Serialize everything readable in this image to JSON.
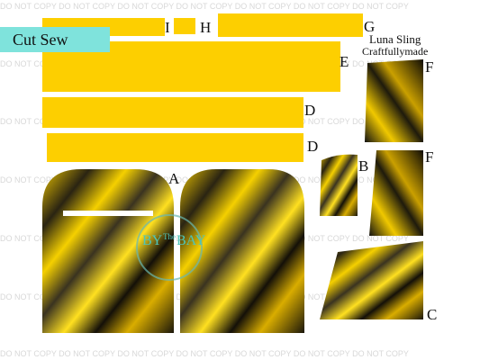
{
  "header": {
    "label": "Cut Sew",
    "title": "Luna Sling",
    "brand": "Craftfullymade"
  },
  "watermark": "DO NOT COPY DO NOT COPY DO NOT COPY DO NOT COPY DO NOT COPY DO NOT COPY DO NOT COPY",
  "logo": {
    "line1": "BY",
    "line2": "The",
    "line3": "BAY"
  },
  "pieces": {
    "I": "I",
    "H": "H",
    "G": "G",
    "E": "E",
    "D1": "D",
    "D2": "D",
    "A": "A",
    "B": "B",
    "F1": "F",
    "F2": "F",
    "C": "C"
  }
}
